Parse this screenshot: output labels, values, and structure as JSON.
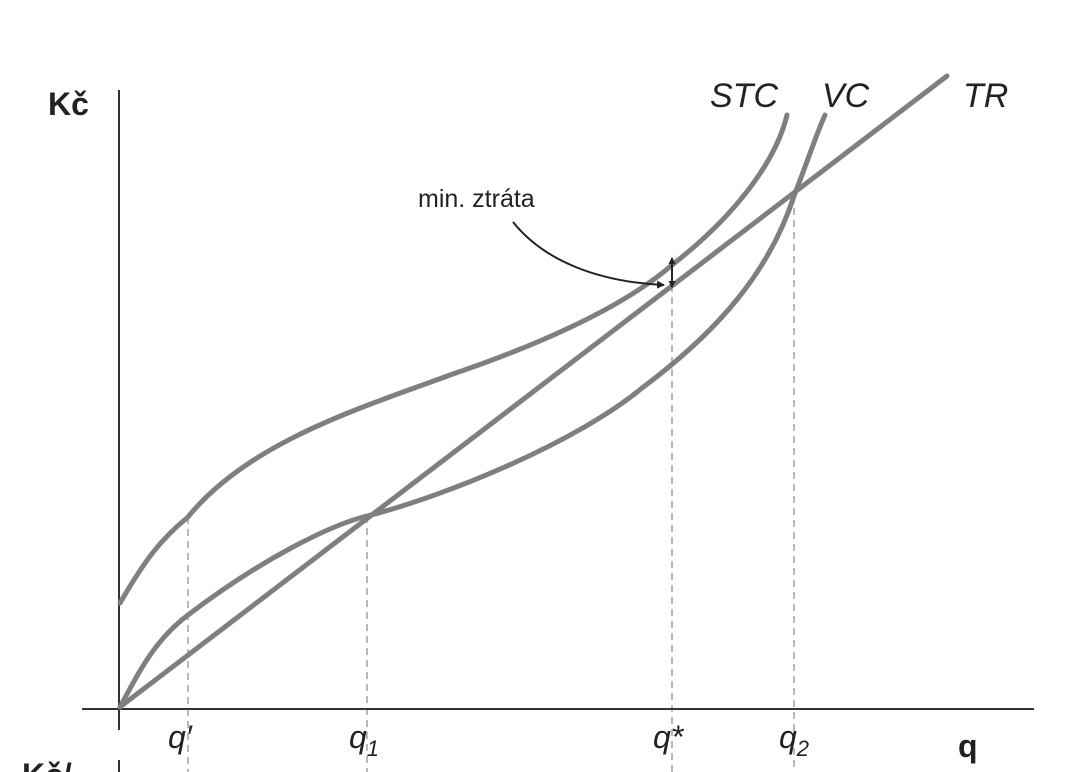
{
  "figure": {
    "y_axis_label": "Kč",
    "x_axis_label": "q",
    "annotation": "min. ztráta",
    "cut_off_label": "Kč/",
    "curves": [
      {
        "name": "STC"
      },
      {
        "name": "VC"
      },
      {
        "name": "TR"
      }
    ],
    "ticks": [
      {
        "base": "q",
        "mark": "′",
        "sub": ""
      },
      {
        "base": "q",
        "mark": "",
        "sub": "1"
      },
      {
        "base": "q",
        "mark": "*",
        "sub": ""
      },
      {
        "base": "q",
        "mark": "",
        "sub": "2"
      }
    ],
    "colors": {
      "curves": "#7f7f7f",
      "axes": "#333333",
      "text": "#222222"
    }
  }
}
